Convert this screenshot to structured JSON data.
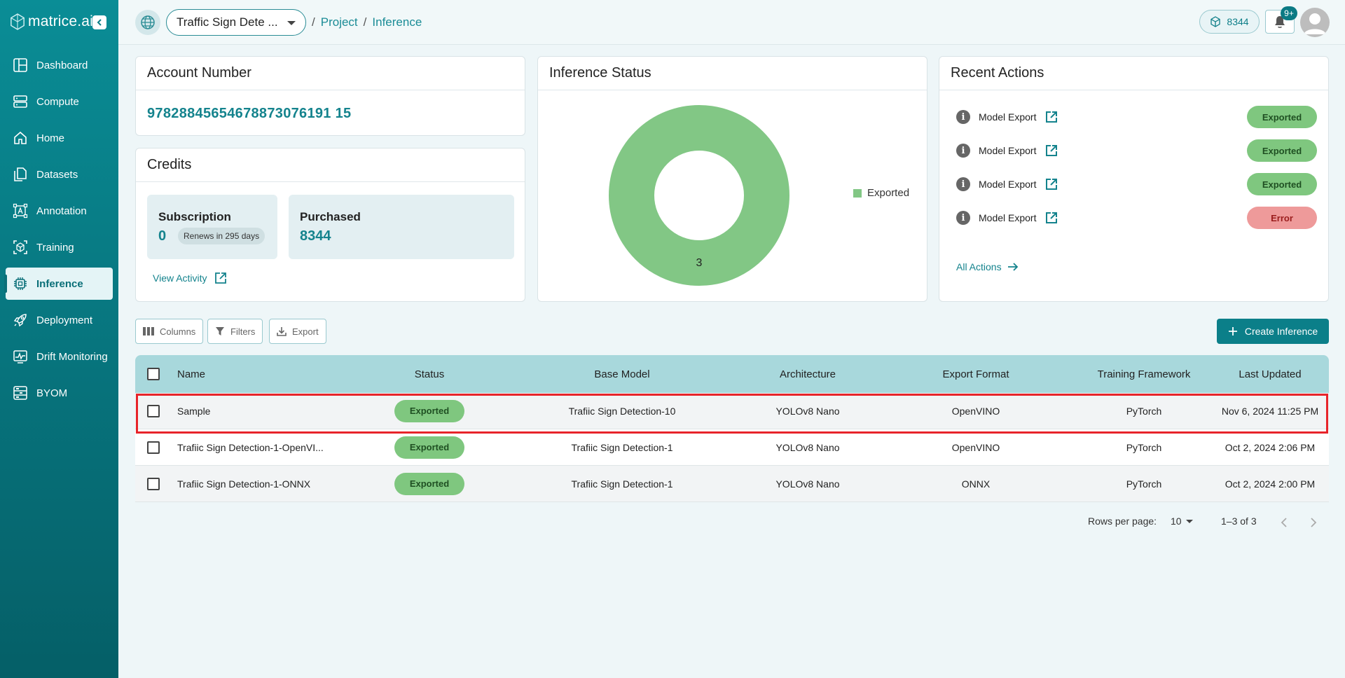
{
  "app": {
    "logo_text": "matrice.ai"
  },
  "sidebar": {
    "items": [
      {
        "label": "Dashboard",
        "icon": "dashboard-icon"
      },
      {
        "label": "Compute",
        "icon": "server-icon"
      },
      {
        "label": "Home",
        "icon": "home-icon"
      },
      {
        "label": "Datasets",
        "icon": "files-icon"
      },
      {
        "label": "Annotation",
        "icon": "annotation-icon"
      },
      {
        "label": "Training",
        "icon": "training-icon"
      },
      {
        "label": "Inference",
        "icon": "chip-icon",
        "active": true
      },
      {
        "label": "Deployment",
        "icon": "rocket-icon"
      },
      {
        "label": "Drift Monitoring",
        "icon": "monitor-icon"
      },
      {
        "label": "BYOM",
        "icon": "byom-icon"
      }
    ]
  },
  "topbar": {
    "project_select": "Traffic Sign Dete ...",
    "breadcrumb": [
      "Project",
      "Inference"
    ],
    "credits": "8344",
    "notifications_badge": "9+"
  },
  "account": {
    "title": "Account Number",
    "number": "97828845654678873076191 15"
  },
  "credits_card": {
    "title": "Credits",
    "subscription_label": "Subscription",
    "subscription_value": "0",
    "renews": "Renews in 295 days",
    "purchased_label": "Purchased",
    "purchased_value": "8344",
    "view_activity": "View Activity"
  },
  "inference_status": {
    "title": "Inference Status",
    "legend_label": "Exported"
  },
  "chart_data": {
    "type": "pie",
    "categories": [
      "Exported"
    ],
    "values": [
      3
    ],
    "colors": [
      "#82c785"
    ],
    "title": "Inference Status",
    "legend": "right"
  },
  "recent_actions": {
    "title": "Recent Actions",
    "items": [
      {
        "label": "Model Export",
        "status": "Exported"
      },
      {
        "label": "Model Export",
        "status": "Exported"
      },
      {
        "label": "Model Export",
        "status": "Exported"
      },
      {
        "label": "Model Export",
        "status": "Error"
      }
    ],
    "all_actions": "All Actions"
  },
  "toolbar": {
    "columns": "Columns",
    "filters": "Filters",
    "export": "Export",
    "create": "Create Inference"
  },
  "table": {
    "headers": [
      "Name",
      "Status",
      "Base Model",
      "Architecture",
      "Export Format",
      "Training Framework",
      "Last Updated"
    ],
    "rows": [
      [
        "Sample",
        "Exported",
        "Trafiic Sign Detection-10",
        "YOLOv8 Nano",
        "OpenVINO",
        "PyTorch",
        "Nov 6, 2024 11:25 PM"
      ],
      [
        "Trafiic Sign Detection-1-OpenVI...",
        "Exported",
        "Trafiic Sign Detection-1",
        "YOLOv8 Nano",
        "OpenVINO",
        "PyTorch",
        "Oct 2, 2024 2:06 PM"
      ],
      [
        "Trafiic Sign Detection-1-ONNX",
        "Exported",
        "Trafiic Sign Detection-1",
        "YOLOv8 Nano",
        "ONNX",
        "PyTorch",
        "Oct 2, 2024 2:00 PM"
      ]
    ]
  },
  "pagination": {
    "rows_per_page_label": "Rows per page:",
    "rows_per_page": "10",
    "range": "1–3 of 3"
  }
}
